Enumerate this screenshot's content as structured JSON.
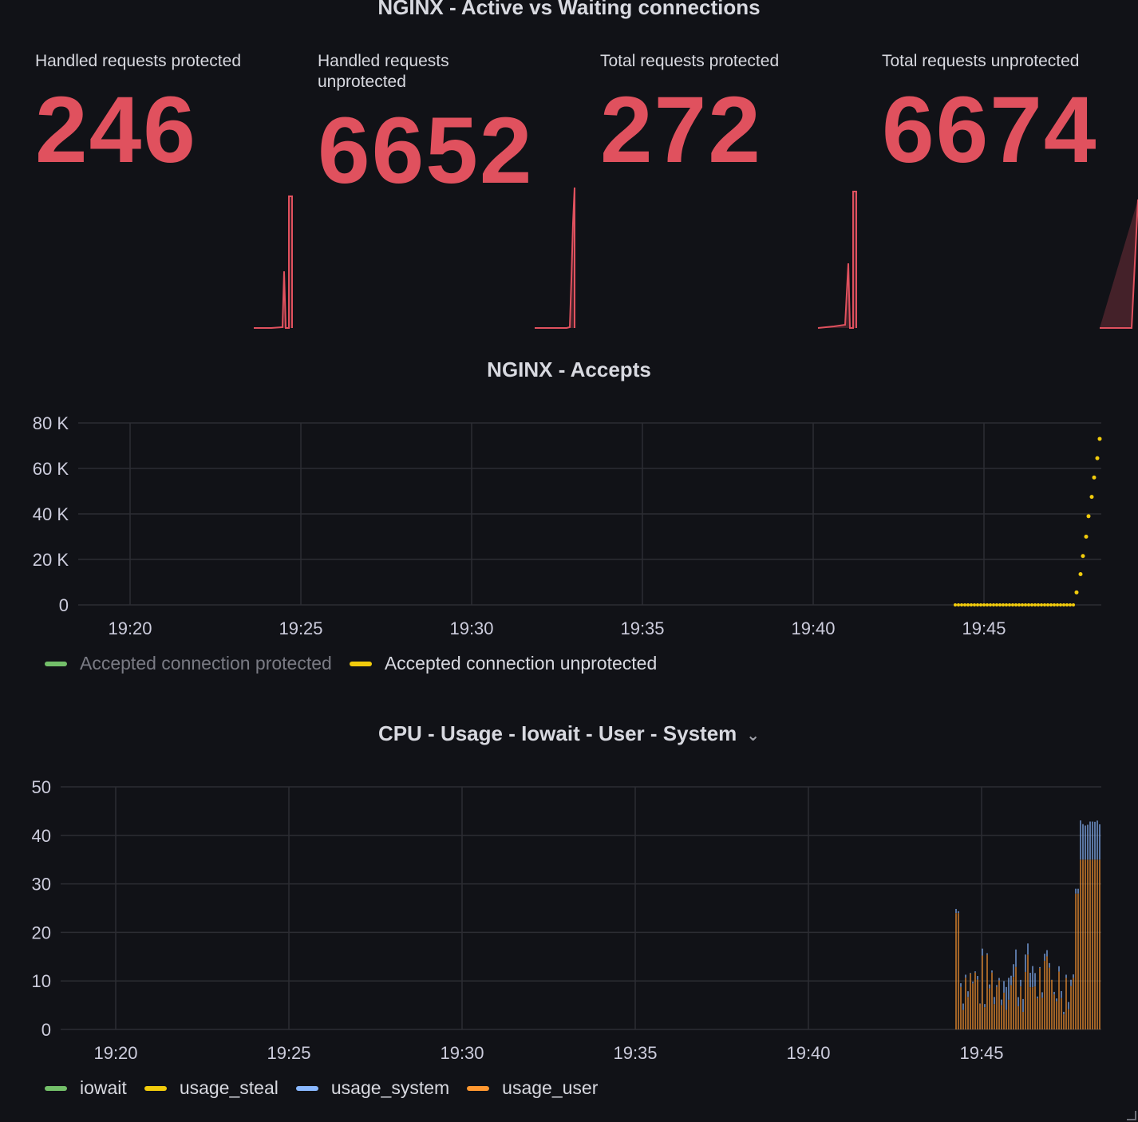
{
  "panels": {
    "connections": {
      "title": "NGINX - Active vs Waiting connections"
    },
    "accepts": {
      "title": "NGINX - Accepts"
    },
    "cpu": {
      "title": "CPU - Usage - Iowait - User - System"
    }
  },
  "stats": [
    {
      "title": "Handled requests protected",
      "value": "246"
    },
    {
      "title": "Handled requests unprotected",
      "value": "6652"
    },
    {
      "title": "Total requests protected",
      "value": "272"
    },
    {
      "title": "Total requests unprotected",
      "value": "6674"
    }
  ],
  "colors": {
    "stat": "#e0515e",
    "green": "#73bf69",
    "yellow": "#f2cc0c",
    "blue": "#8ab8ff",
    "orange": "#ff9830",
    "grid": "#2c2d33"
  },
  "accepts_chart": {
    "type": "scatter",
    "y_ticks": [
      "80 K",
      "60 K",
      "40 K",
      "20 K",
      "0"
    ],
    "x_ticks": [
      "19:20",
      "19:25",
      "19:30",
      "19:35",
      "19:40",
      "19:45"
    ],
    "ylim": [
      0,
      80000
    ],
    "legend": [
      {
        "name": "Accepted connection protected",
        "color": "#73bf69",
        "hidden": true
      },
      {
        "name": "Accepted connection unprotected",
        "color": "#f2cc0c",
        "hidden": false
      }
    ]
  },
  "cpu_chart": {
    "type": "bar",
    "y_ticks": [
      "50",
      "40",
      "30",
      "20",
      "10",
      "0"
    ],
    "x_ticks": [
      "19:20",
      "19:25",
      "19:30",
      "19:35",
      "19:40",
      "19:45"
    ],
    "ylim": [
      0,
      50
    ],
    "legend": [
      {
        "name": "iowait",
        "color": "#73bf69"
      },
      {
        "name": "usage_steal",
        "color": "#f2cc0c"
      },
      {
        "name": "usage_system",
        "color": "#8ab8ff"
      },
      {
        "name": "usage_user",
        "color": "#ff9830"
      }
    ]
  }
}
